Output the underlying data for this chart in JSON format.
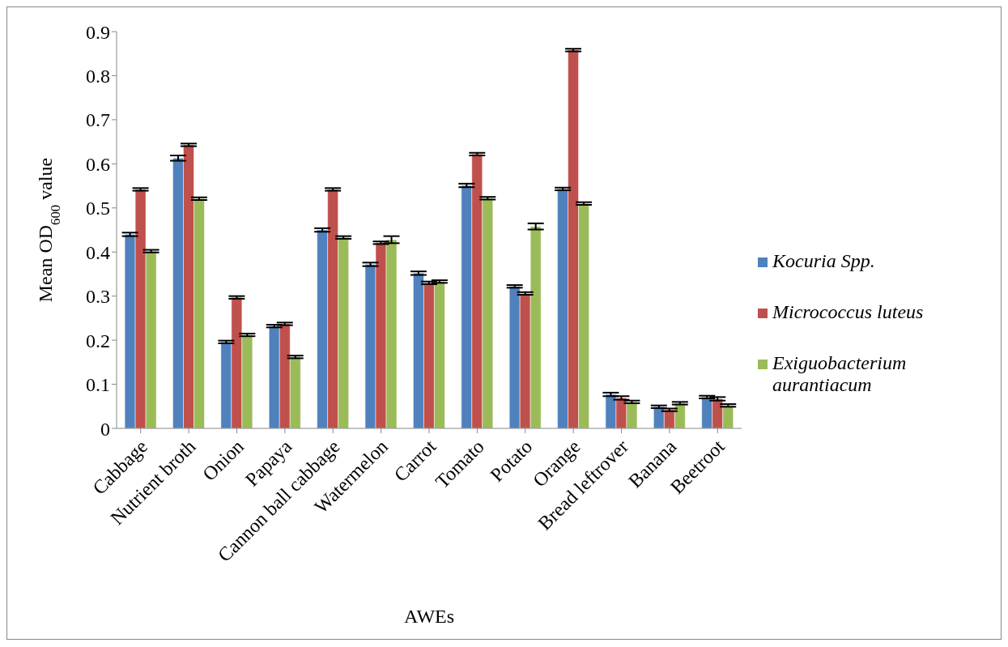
{
  "chart_data": {
    "type": "bar",
    "xlabel": "AWEs",
    "ylabel": "Mean OD$_{600}$ value",
    "categories": [
      "Cabbage",
      "Nutrient broth",
      "Onion",
      "Papaya",
      "Cannon ball cabbage",
      "Watermelon",
      "Carrot",
      "Tomato",
      "Potato",
      "Orange",
      "Bread leftrover",
      "Banana",
      "Beetroot"
    ],
    "series": [
      {
        "name": "Kocuria Spp.",
        "color": "#4f81bd",
        "values": [
          0.44,
          0.613,
          0.196,
          0.232,
          0.45,
          0.372,
          0.352,
          0.551,
          0.322,
          0.543,
          0.077,
          0.049,
          0.071
        ],
        "errors": [
          0.004,
          0.006,
          0.003,
          0.003,
          0.004,
          0.004,
          0.004,
          0.004,
          0.003,
          0.003,
          0.004,
          0.003,
          0.003
        ]
      },
      {
        "name": "Micrococcus luteus",
        "color": "#c0504d",
        "values": [
          0.542,
          0.643,
          0.297,
          0.237,
          0.542,
          0.421,
          0.33,
          0.622,
          0.306,
          0.858,
          0.069,
          0.042,
          0.067
        ],
        "errors": [
          0.003,
          0.003,
          0.003,
          0.003,
          0.003,
          0.003,
          0.003,
          0.003,
          0.003,
          0.003,
          0.004,
          0.003,
          0.004
        ]
      },
      {
        "name": "Exiguobacterium aurantiacum",
        "color": "#9bbb59",
        "values": [
          0.402,
          0.521,
          0.212,
          0.162,
          0.433,
          0.428,
          0.333,
          0.522,
          0.458,
          0.51,
          0.06,
          0.057,
          0.052
        ],
        "errors": [
          0.003,
          0.003,
          0.003,
          0.003,
          0.003,
          0.008,
          0.003,
          0.003,
          0.007,
          0.003,
          0.003,
          0.003,
          0.003
        ]
      }
    ],
    "ylim": [
      0,
      0.9
    ],
    "yticks": [
      0,
      0.1,
      0.2,
      0.3,
      0.4,
      0.5,
      0.6,
      0.7,
      0.8,
      0.9
    ],
    "grid": false,
    "legend": "right"
  }
}
